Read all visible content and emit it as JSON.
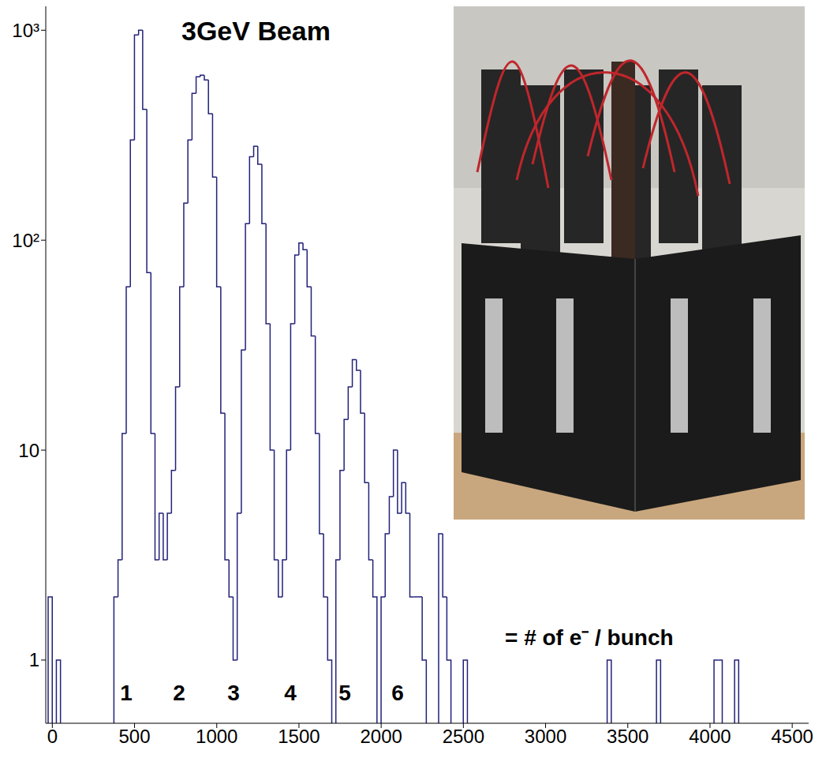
{
  "chart_data": {
    "type": "histogram",
    "title": "3GeV Beam",
    "color": "#22227a",
    "log": "y",
    "grid": false,
    "bins": [
      -25,
      0,
      25,
      50,
      75,
      100,
      125,
      150,
      175,
      200,
      225,
      250,
      275,
      300,
      325,
      350,
      375,
      400,
      425,
      450,
      475,
      500,
      525,
      550,
      575,
      600,
      625,
      650,
      675,
      700,
      725,
      750,
      775,
      800,
      825,
      850,
      875,
      900,
      925,
      950,
      975,
      1000,
      1025,
      1050,
      1075,
      1100,
      1125,
      1150,
      1175,
      1200,
      1225,
      1250,
      1275,
      1300,
      1325,
      1350,
      1375,
      1400,
      1425,
      1450,
      1475,
      1500,
      1525,
      1550,
      1575,
      1600,
      1625,
      1650,
      1675,
      1700,
      1725,
      1750,
      1775,
      1800,
      1825,
      1850,
      1875,
      1900,
      1925,
      1950,
      1975,
      2000,
      2025,
      2050,
      2075,
      2100,
      2125,
      2150,
      2175,
      2200,
      2225,
      2250,
      2275,
      2300,
      2325,
      2350,
      2375,
      2400,
      2425,
      2450,
      2475,
      2500,
      2525,
      2550,
      2575,
      2600,
      2625,
      2650,
      2675,
      2700,
      2725,
      2750,
      2775,
      2800,
      2825,
      2850,
      2875,
      2900,
      2925,
      2950,
      2975,
      3000,
      3025,
      3050,
      3075,
      3100,
      3125,
      3150,
      3175,
      3200,
      3225,
      3250,
      3275,
      3300,
      3325,
      3350,
      3375,
      3400,
      3425,
      3450,
      3475,
      3500,
      3525,
      3550,
      3575,
      3600,
      3625,
      3650,
      3675,
      3700,
      3725,
      3750,
      3775,
      3800,
      3825,
      3850,
      3875,
      3900,
      3925,
      3950,
      3975,
      4000,
      4025,
      4050,
      4075,
      4100,
      4125,
      4150,
      4175,
      4200,
      4225,
      4250,
      4275,
      4300,
      4325,
      4350,
      4375,
      4400,
      4425,
      4450,
      4475,
      4500
    ],
    "counts": [
      2,
      0,
      1,
      0,
      0,
      0,
      0,
      0,
      0,
      0,
      0,
      0,
      0,
      0,
      0,
      0,
      2,
      3,
      12,
      60,
      300,
      950,
      1000,
      420,
      70,
      12,
      3,
      5,
      3,
      5,
      8,
      20,
      60,
      150,
      300,
      500,
      600,
      610,
      580,
      400,
      200,
      60,
      15,
      3,
      2,
      1,
      5,
      30,
      120,
      250,
      280,
      230,
      120,
      40,
      10,
      3,
      2,
      3,
      10,
      40,
      85,
      97,
      90,
      60,
      35,
      12,
      4,
      2,
      1,
      0,
      3,
      8,
      14,
      20,
      27,
      24,
      15,
      7,
      3,
      2,
      0,
      2,
      4,
      6,
      10,
      5,
      7,
      5,
      2,
      2,
      2,
      1,
      0,
      0,
      0,
      4,
      2,
      1,
      0,
      0,
      0,
      1,
      0,
      0,
      0,
      0,
      0,
      0,
      0,
      0,
      0,
      0,
      0,
      0,
      0,
      0,
      0,
      0,
      0,
      0,
      0,
      0,
      0,
      0,
      0,
      0,
      0,
      0,
      0,
      0,
      0,
      0,
      0,
      0,
      0,
      0,
      1,
      0,
      0,
      0,
      0,
      0,
      0,
      0,
      0,
      0,
      0,
      0,
      1,
      0,
      0,
      0,
      0,
      0,
      0,
      0,
      0,
      0,
      0,
      0,
      0,
      0,
      1,
      1,
      0,
      0,
      0,
      1,
      0,
      0,
      0,
      0,
      0,
      0,
      0,
      0,
      0,
      0,
      0,
      0,
      0
    ],
    "xlim": [
      -40,
      4600
    ],
    "xticks": [
      0,
      500,
      1000,
      1500,
      2000,
      2500,
      3000,
      3500,
      4000,
      4500
    ],
    "ylim": [
      0.5,
      1300
    ],
    "yticks": [
      1,
      10,
      {
        "value": 100,
        "label": "10²"
      },
      {
        "value": 1000,
        "label": "10³"
      }
    ],
    "annotations": [
      "1",
      "2",
      "3",
      "4",
      "5",
      "6",
      "= # of e⁻ / bunch"
    ]
  }
}
